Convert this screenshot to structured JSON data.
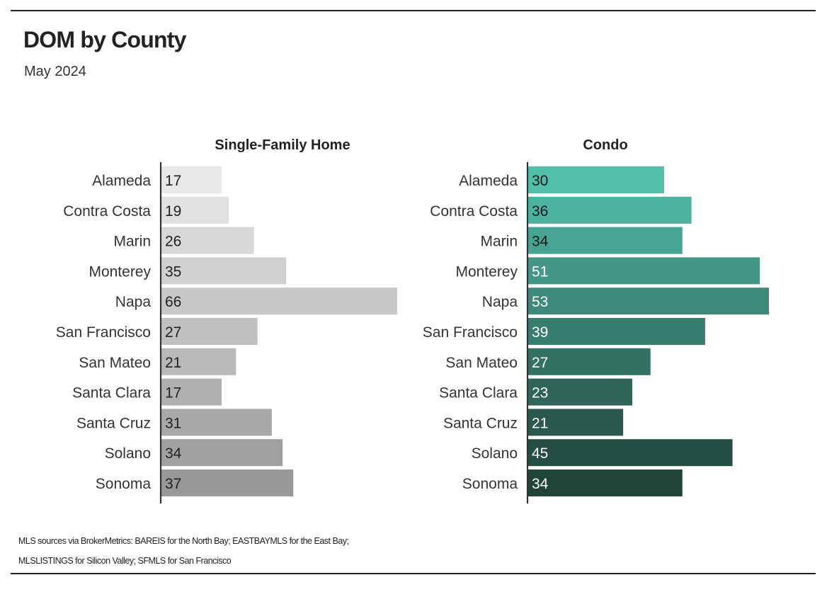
{
  "title": "DOM by County",
  "subtitle": "May 2024",
  "source_note": "MLS sources via BrokerMetrics: BAREIS for the North Bay; EASTBAYMLS for the East Bay; MLSLISTINGS for Silicon Valley; SFMLS for San Francisco",
  "chart_data": [
    {
      "type": "bar",
      "orientation": "horizontal",
      "title": "Single-Family Home",
      "categories": [
        "Alameda",
        "Contra Costa",
        "Marin",
        "Monterey",
        "Napa",
        "San Francisco",
        "San Mateo",
        "Santa Clara",
        "Santa Cruz",
        "Solano",
        "Sonoma"
      ],
      "values": [
        17,
        19,
        26,
        35,
        66,
        27,
        21,
        17,
        31,
        34,
        37
      ],
      "xlabel": "",
      "ylabel": "",
      "xlim": [
        0,
        66
      ],
      "grid": false,
      "data_labels": true,
      "colors": [
        "#e8e8e8",
        "#e0e0e0",
        "#d8d8d8",
        "#d0d0d0",
        "#c8c8c8",
        "#c0c0c0",
        "#b8b8b8",
        "#b0b0b0",
        "#a8a8a8",
        "#a0a0a0",
        "#989898"
      ],
      "label_colors": [
        "#222222",
        "#222222",
        "#222222",
        "#222222",
        "#222222",
        "#222222",
        "#222222",
        "#222222",
        "#222222",
        "#222222",
        "#222222"
      ]
    },
    {
      "type": "bar",
      "orientation": "horizontal",
      "title": "Condo",
      "categories": [
        "Alameda",
        "Contra Costa",
        "Marin",
        "Monterey",
        "Napa",
        "San Francisco",
        "San Mateo",
        "Santa Clara",
        "Santa Cruz",
        "Solano",
        "Sonoma"
      ],
      "values": [
        30,
        36,
        34,
        51,
        53,
        39,
        27,
        23,
        21,
        45,
        34
      ],
      "xlabel": "",
      "ylabel": "",
      "xlim": [
        0,
        53
      ],
      "grid": false,
      "data_labels": true,
      "colors": [
        "#52bfab",
        "#4cb19e",
        "#47a492",
        "#429786",
        "#3d8a7a",
        "#387e6f",
        "#337163",
        "#2e6558",
        "#2a594d",
        "#254d43",
        "#214439"
      ],
      "label_colors": [
        "#1a1a1a",
        "#1a1a1a",
        "#1a1a1a",
        "#ffffff",
        "#ffffff",
        "#ffffff",
        "#ffffff",
        "#ffffff",
        "#ffffff",
        "#ffffff",
        "#ffffff"
      ]
    }
  ]
}
